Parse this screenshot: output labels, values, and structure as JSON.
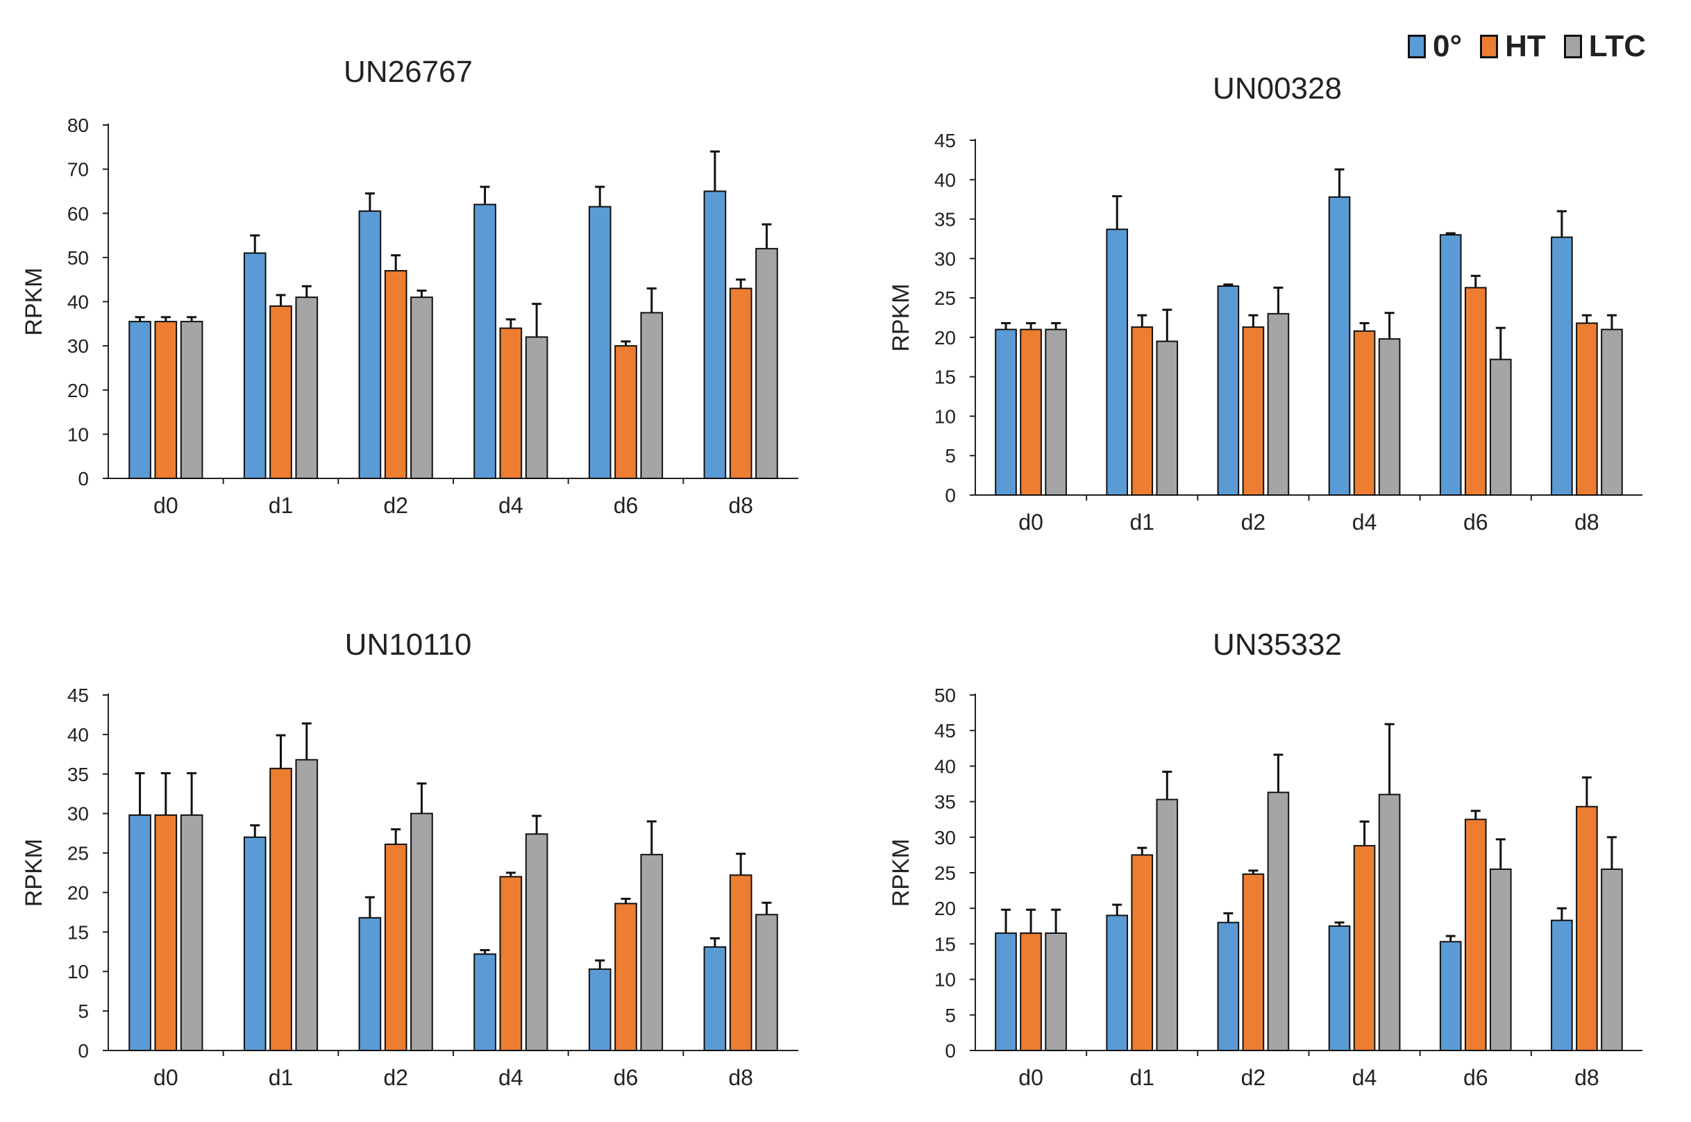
{
  "legend": [
    {
      "name": "0°",
      "color": "#5b9bd5"
    },
    {
      "name": "HT",
      "color": "#ed7d31"
    },
    {
      "name": "LTC",
      "color": "#a5a5a5"
    }
  ],
  "chart_data": [
    {
      "type": "bar",
      "title": "UN26767",
      "xlabel": "",
      "ylabel": "RPKM",
      "ylim": [
        0,
        80
      ],
      "yticks": [
        0,
        10,
        20,
        30,
        40,
        50,
        60,
        70,
        80
      ],
      "categories": [
        "d0",
        "d1",
        "d2",
        "d4",
        "d6",
        "d8"
      ],
      "series": [
        {
          "name": "0°",
          "values": [
            35.5,
            51,
            60.5,
            62,
            61.5,
            65
          ],
          "errors": [
            1,
            4,
            4,
            4,
            4.5,
            9
          ]
        },
        {
          "name": "HT",
          "values": [
            35.5,
            39,
            47,
            34,
            30,
            43
          ],
          "errors": [
            1,
            2.5,
            3.5,
            2,
            1,
            2
          ]
        },
        {
          "name": "LTC",
          "values": [
            35.5,
            41,
            41,
            32,
            37.5,
            52
          ],
          "errors": [
            1,
            2.5,
            1.5,
            7.5,
            5.5,
            5.5
          ]
        }
      ]
    },
    {
      "type": "bar",
      "title": "UN00328",
      "xlabel": "",
      "ylabel": "RPKM",
      "ylim": [
        0,
        45
      ],
      "yticks": [
        0,
        5,
        10,
        15,
        20,
        25,
        30,
        35,
        40,
        45
      ],
      "categories": [
        "d0",
        "d1",
        "d2",
        "d4",
        "d6",
        "d8"
      ],
      "series": [
        {
          "name": "0°",
          "values": [
            21,
            33.7,
            26.5,
            37.8,
            33,
            32.7
          ],
          "errors": [
            0.8,
            4.2,
            0.2,
            3.5,
            0.2,
            3.3
          ]
        },
        {
          "name": "HT",
          "values": [
            21,
            21.3,
            21.3,
            20.8,
            26.3,
            21.8
          ],
          "errors": [
            0.8,
            1.5,
            1.5,
            1,
            1.5,
            1
          ]
        },
        {
          "name": "LTC",
          "values": [
            21,
            19.5,
            23,
            19.8,
            17.2,
            21
          ],
          "errors": [
            0.8,
            4,
            3.3,
            3.3,
            4,
            1.8
          ]
        }
      ]
    },
    {
      "type": "bar",
      "title": "UN10110",
      "xlabel": "",
      "ylabel": "RPKM",
      "ylim": [
        0,
        45
      ],
      "yticks": [
        0,
        5,
        10,
        15,
        20,
        25,
        30,
        35,
        40,
        45
      ],
      "categories": [
        "d0",
        "d1",
        "d2",
        "d4",
        "d6",
        "d8"
      ],
      "series": [
        {
          "name": "0°",
          "values": [
            29.8,
            27,
            16.8,
            12.2,
            10.3,
            13.1
          ],
          "errors": [
            5.3,
            1.5,
            2.6,
            0.5,
            1.1,
            1.1
          ]
        },
        {
          "name": "HT",
          "values": [
            29.8,
            35.7,
            26.1,
            22,
            18.6,
            22.2
          ],
          "errors": [
            5.3,
            4.2,
            1.9,
            0.5,
            0.6,
            2.7
          ]
        },
        {
          "name": "LTC",
          "values": [
            29.8,
            36.8,
            30,
            27.4,
            24.8,
            17.2
          ],
          "errors": [
            5.3,
            4.6,
            3.8,
            2.3,
            4.2,
            1.5
          ]
        }
      ]
    },
    {
      "type": "bar",
      "title": "UN35332",
      "xlabel": "",
      "ylabel": "RPKM",
      "ylim": [
        0,
        50
      ],
      "yticks": [
        0,
        5,
        10,
        15,
        20,
        25,
        30,
        35,
        40,
        45,
        50
      ],
      "categories": [
        "d0",
        "d1",
        "d2",
        "d4",
        "d6",
        "d8"
      ],
      "series": [
        {
          "name": "0°",
          "values": [
            16.5,
            19,
            18,
            17.5,
            15.3,
            18.3
          ],
          "errors": [
            3.3,
            1.5,
            1.3,
            0.5,
            0.8,
            1.7
          ]
        },
        {
          "name": "HT",
          "values": [
            16.5,
            27.5,
            24.8,
            28.8,
            32.5,
            34.3
          ],
          "errors": [
            3.3,
            1,
            0.5,
            3.4,
            1.2,
            4.1
          ]
        },
        {
          "name": "LTC",
          "values": [
            16.5,
            35.3,
            36.3,
            36,
            25.5,
            25.5
          ],
          "errors": [
            3.3,
            3.9,
            5.3,
            9.9,
            4.2,
            4.5
          ]
        }
      ]
    }
  ]
}
